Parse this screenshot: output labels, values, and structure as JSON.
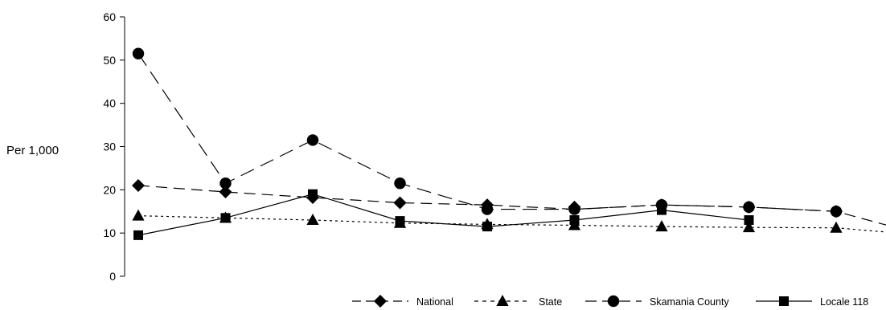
{
  "chart_data": {
    "type": "line",
    "title": "",
    "xlabel": "",
    "ylabel": "Per 1,000",
    "ylim": [
      0,
      60
    ],
    "yticks": [
      0,
      10,
      20,
      30,
      40,
      50,
      60
    ],
    "grid": false,
    "legend_position": "bottom-right",
    "x": [
      1,
      2,
      3,
      4,
      5,
      6,
      7,
      8,
      9,
      10
    ],
    "series": [
      {
        "name": "National",
        "marker": "diamond",
        "line_style": "long-dash",
        "color": "#000000",
        "values": [
          21,
          19.5,
          18.2,
          17,
          16.5,
          16,
          16.5,
          16,
          15,
          null
        ],
        "line_values": [
          21,
          19.5,
          18.2,
          17,
          16.5,
          15.5,
          16.5,
          16,
          15,
          9.5
        ]
      },
      {
        "name": "State",
        "marker": "triangle",
        "line_style": "dotted",
        "color": "#000000",
        "values": [
          14,
          13.5,
          13,
          12.3,
          12,
          11.8,
          11.5,
          11.3,
          11.2,
          null
        ],
        "line_values": [
          14,
          13.5,
          13,
          12.3,
          12,
          11.8,
          11.5,
          11.3,
          11.2,
          9.5
        ]
      },
      {
        "name": "Skamania County",
        "marker": "circle",
        "line_style": "dash",
        "color": "#000000",
        "values": [
          51.5,
          21.5,
          31.5,
          21.5,
          15.5,
          15.5,
          16.5,
          16,
          15,
          null
        ],
        "line_values": [
          51.5,
          21.5,
          31.5,
          21.5,
          15.5,
          15.5,
          16.5,
          16,
          15,
          null
        ]
      },
      {
        "name": "Locale 118",
        "marker": "square",
        "line_style": "solid",
        "color": "#000000",
        "values": [
          9.5,
          13.5,
          19,
          12.8,
          11.5,
          13,
          15.3,
          13,
          null,
          null
        ],
        "line_values": [
          9.5,
          13.5,
          19,
          12.8,
          11.5,
          13,
          15.3,
          13,
          null,
          null
        ]
      }
    ]
  }
}
